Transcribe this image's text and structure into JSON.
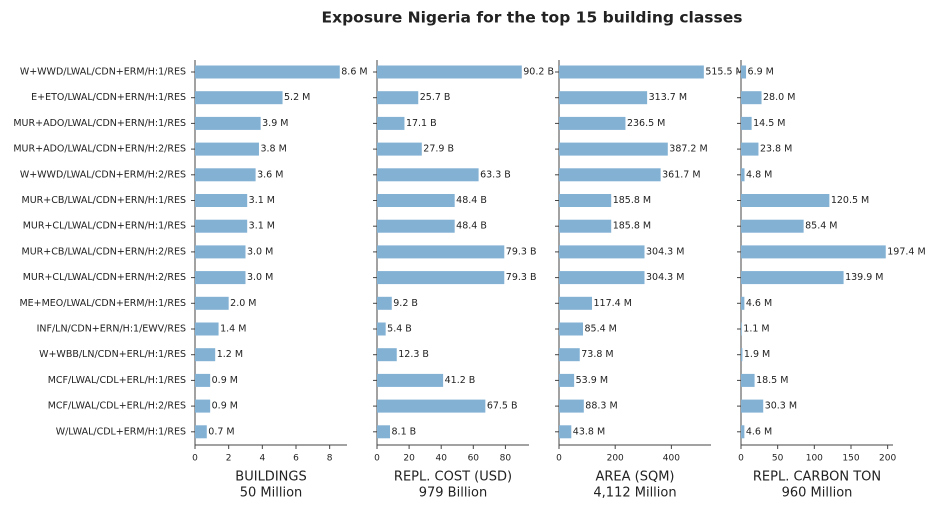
{
  "title": "Exposure Nigeria for the top 15 building classes",
  "chart_data": [
    {
      "type": "barh",
      "color": "#82b1d4",
      "xlabel": "BUILDINGS",
      "total": "50 Million",
      "categories": [
        "W+WWD/LWAL/CDN+ERM/H:1/RES",
        "E+ETO/LWAL/CDN+ERN/H:1/RES",
        "MUR+ADO/LWAL/CDN+ERN/H:1/RES",
        "MUR+ADO/LWAL/CDN+ERN/H:2/RES",
        "W+WWD/LWAL/CDN+ERM/H:2/RES",
        "MUR+CB/LWAL/CDN+ERN/H:1/RES",
        "MUR+CL/LWAL/CDN+ERN/H:1/RES",
        "MUR+CB/LWAL/CDN+ERN/H:2/RES",
        "MUR+CL/LWAL/CDN+ERN/H:2/RES",
        "ME+MEO/LWAL/CDN+ERM/H:1/RES",
        "INF/LN/CDN+ERN/H:1/EWV/RES",
        "W+WBB/LN/CDN+ERL/H:1/RES",
        "MCF/LWAL/CDL+ERL/H:1/RES",
        "MCF/LWAL/CDL+ERL/H:2/RES",
        "W/LWAL/CDL+ERM/H:1/RES"
      ],
      "values": [
        8.6,
        5.2,
        3.9,
        3.8,
        3.6,
        3.1,
        3.1,
        3.0,
        3.0,
        2.0,
        1.4,
        1.2,
        0.9,
        0.9,
        0.7
      ],
      "value_labels": [
        "8.6 M",
        "5.2 M",
        "3.9 M",
        "3.8 M",
        "3.6 M",
        "3.1 M",
        "3.1 M",
        "3.0 M",
        "3.0 M",
        "2.0 M",
        "1.4 M",
        "1.2 M",
        "0.9 M",
        "0.9 M",
        "0.7 M"
      ],
      "xlim": [
        0,
        9.03
      ],
      "xticks": [
        0,
        2,
        4,
        6,
        8
      ]
    },
    {
      "type": "barh",
      "color": "#82b1d4",
      "xlabel": "REPL. COST (USD)",
      "total": "979 Billion",
      "values": [
        90.2,
        25.7,
        17.1,
        27.9,
        63.3,
        48.4,
        48.4,
        79.3,
        79.3,
        9.2,
        5.4,
        12.3,
        41.2,
        67.5,
        8.1
      ],
      "value_labels": [
        "90.2 B",
        "25.7 B",
        "17.1 B",
        "27.9 B",
        "63.3 B",
        "48.4 B",
        "48.4 B",
        "79.3 B",
        "79.3 B",
        "9.2 B",
        "5.4 B",
        "12.3 B",
        "41.2 B",
        "67.5 B",
        "8.1 B"
      ],
      "xlim": [
        0,
        94.7
      ],
      "xticks": [
        0,
        20,
        40,
        60,
        80
      ]
    },
    {
      "type": "barh",
      "color": "#82b1d4",
      "xlabel": "AREA (SQM)",
      "total": "4,112 Million",
      "values": [
        515.5,
        313.7,
        236.5,
        387.2,
        361.7,
        185.8,
        185.8,
        304.3,
        304.3,
        117.4,
        85.4,
        73.8,
        53.9,
        88.3,
        43.8
      ],
      "value_labels": [
        "515.5 M",
        "313.7 M",
        "236.5 M",
        "387.2 M",
        "361.7 M",
        "185.8 M",
        "185.8 M",
        "304.3 M",
        "304.3 M",
        "117.4 M",
        "85.4 M",
        "73.8 M",
        "53.9 M",
        "88.3 M",
        "43.8 M"
      ],
      "xlim": [
        0,
        541
      ],
      "xticks": [
        0,
        200,
        400
      ]
    },
    {
      "type": "barh",
      "color": "#82b1d4",
      "xlabel": "REPL. CARBON TON",
      "total": "960 Million",
      "values": [
        6.9,
        28.0,
        14.5,
        23.8,
        4.8,
        120.5,
        85.4,
        197.4,
        139.9,
        4.6,
        1.1,
        1.9,
        18.5,
        30.3,
        4.6
      ],
      "value_labels": [
        "6.9 M",
        "28.0 M",
        "14.5 M",
        "23.8 M",
        "4.8 M",
        "120.5 M",
        "85.4 M",
        "197.4 M",
        "139.9 M",
        "4.6 M",
        "1.1 M",
        "1.9 M",
        "18.5 M",
        "30.3 M",
        "4.6 M"
      ],
      "xlim": [
        0,
        207.3
      ],
      "xticks": [
        0,
        50,
        100,
        150,
        200
      ]
    }
  ]
}
